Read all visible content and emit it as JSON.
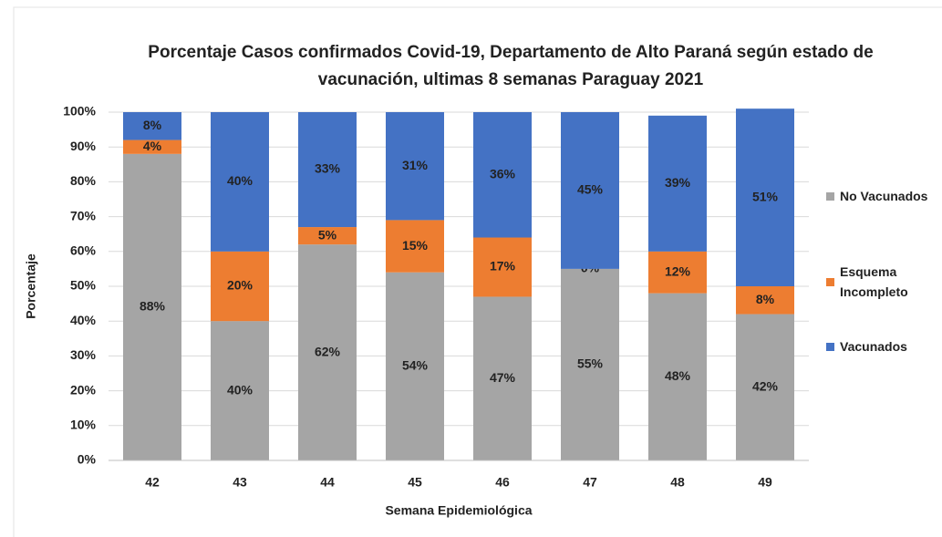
{
  "chart_data": {
    "type": "stacked_bar",
    "title": [
      "Porcentaje Casos confirmados Covid-19, Departamento de Alto Paraná según estado de",
      "vacunación, ultimas 8 semanas Paraguay 2021"
    ],
    "x_label": "Semana Epidemiológica",
    "y_label": "Porcentaje",
    "categories": [
      "42",
      "43",
      "44",
      "45",
      "46",
      "47",
      "48",
      "49"
    ],
    "series": [
      {
        "name": "No Vacunados",
        "color": "#a5a5a5",
        "values": [
          88,
          40,
          62,
          54,
          47,
          55,
          48,
          42
        ],
        "value_labels": [
          "88%",
          "40%",
          "62%",
          "54%",
          "47%",
          "55%",
          "48%",
          "42%"
        ]
      },
      {
        "name": "Esquema Incompleto",
        "color": "#ed7d31",
        "values": [
          4,
          20,
          5,
          15,
          17,
          0,
          12,
          8
        ],
        "value_labels": [
          "4%",
          "20%",
          "5%",
          "15%",
          "17%",
          "0%",
          "12%",
          "8%"
        ]
      },
      {
        "name": "Vacunados",
        "color": "#4472c4",
        "values": [
          8,
          40,
          33,
          31,
          36,
          45,
          39,
          51
        ],
        "value_labels": [
          "8%",
          "40%",
          "33%",
          "31%",
          "36%",
          "45%",
          "39%",
          "51%"
        ]
      }
    ],
    "ylim": [
      0,
      100
    ],
    "yticks": [
      {
        "value": 0,
        "label": "0%"
      },
      {
        "value": 10,
        "label": "10%"
      },
      {
        "value": 20,
        "label": "20%"
      },
      {
        "value": 30,
        "label": "30%"
      },
      {
        "value": 40,
        "label": "40%"
      },
      {
        "value": 50,
        "label": "50%"
      },
      {
        "value": 60,
        "label": "60%"
      },
      {
        "value": 70,
        "label": "70%"
      },
      {
        "value": 80,
        "label": "80%"
      },
      {
        "value": 90,
        "label": "90%"
      },
      {
        "value": 100,
        "label": "100%"
      }
    ],
    "grid": true,
    "legend": "right"
  }
}
